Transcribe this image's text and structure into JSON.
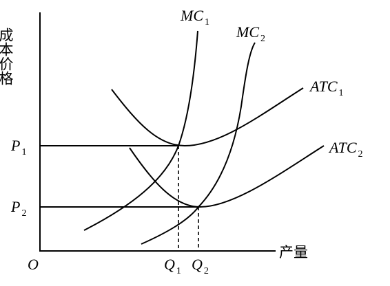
{
  "axes": {
    "y_label": "成本价格",
    "x_label": "产量",
    "origin": "O"
  },
  "labels": {
    "p1": {
      "text": "P",
      "sub": "1"
    },
    "p2": {
      "text": "P",
      "sub": "2"
    },
    "q1": {
      "text": "Q",
      "sub": "1"
    },
    "q2": {
      "text": "Q",
      "sub": "2"
    },
    "mc1": {
      "text": "MC",
      "sub": "1"
    },
    "mc2": {
      "text": "MC",
      "sub": "2"
    },
    "atc1": {
      "text": "ATC",
      "sub": "1"
    },
    "atc2": {
      "text": "ATC",
      "sub": "2"
    }
  }
}
